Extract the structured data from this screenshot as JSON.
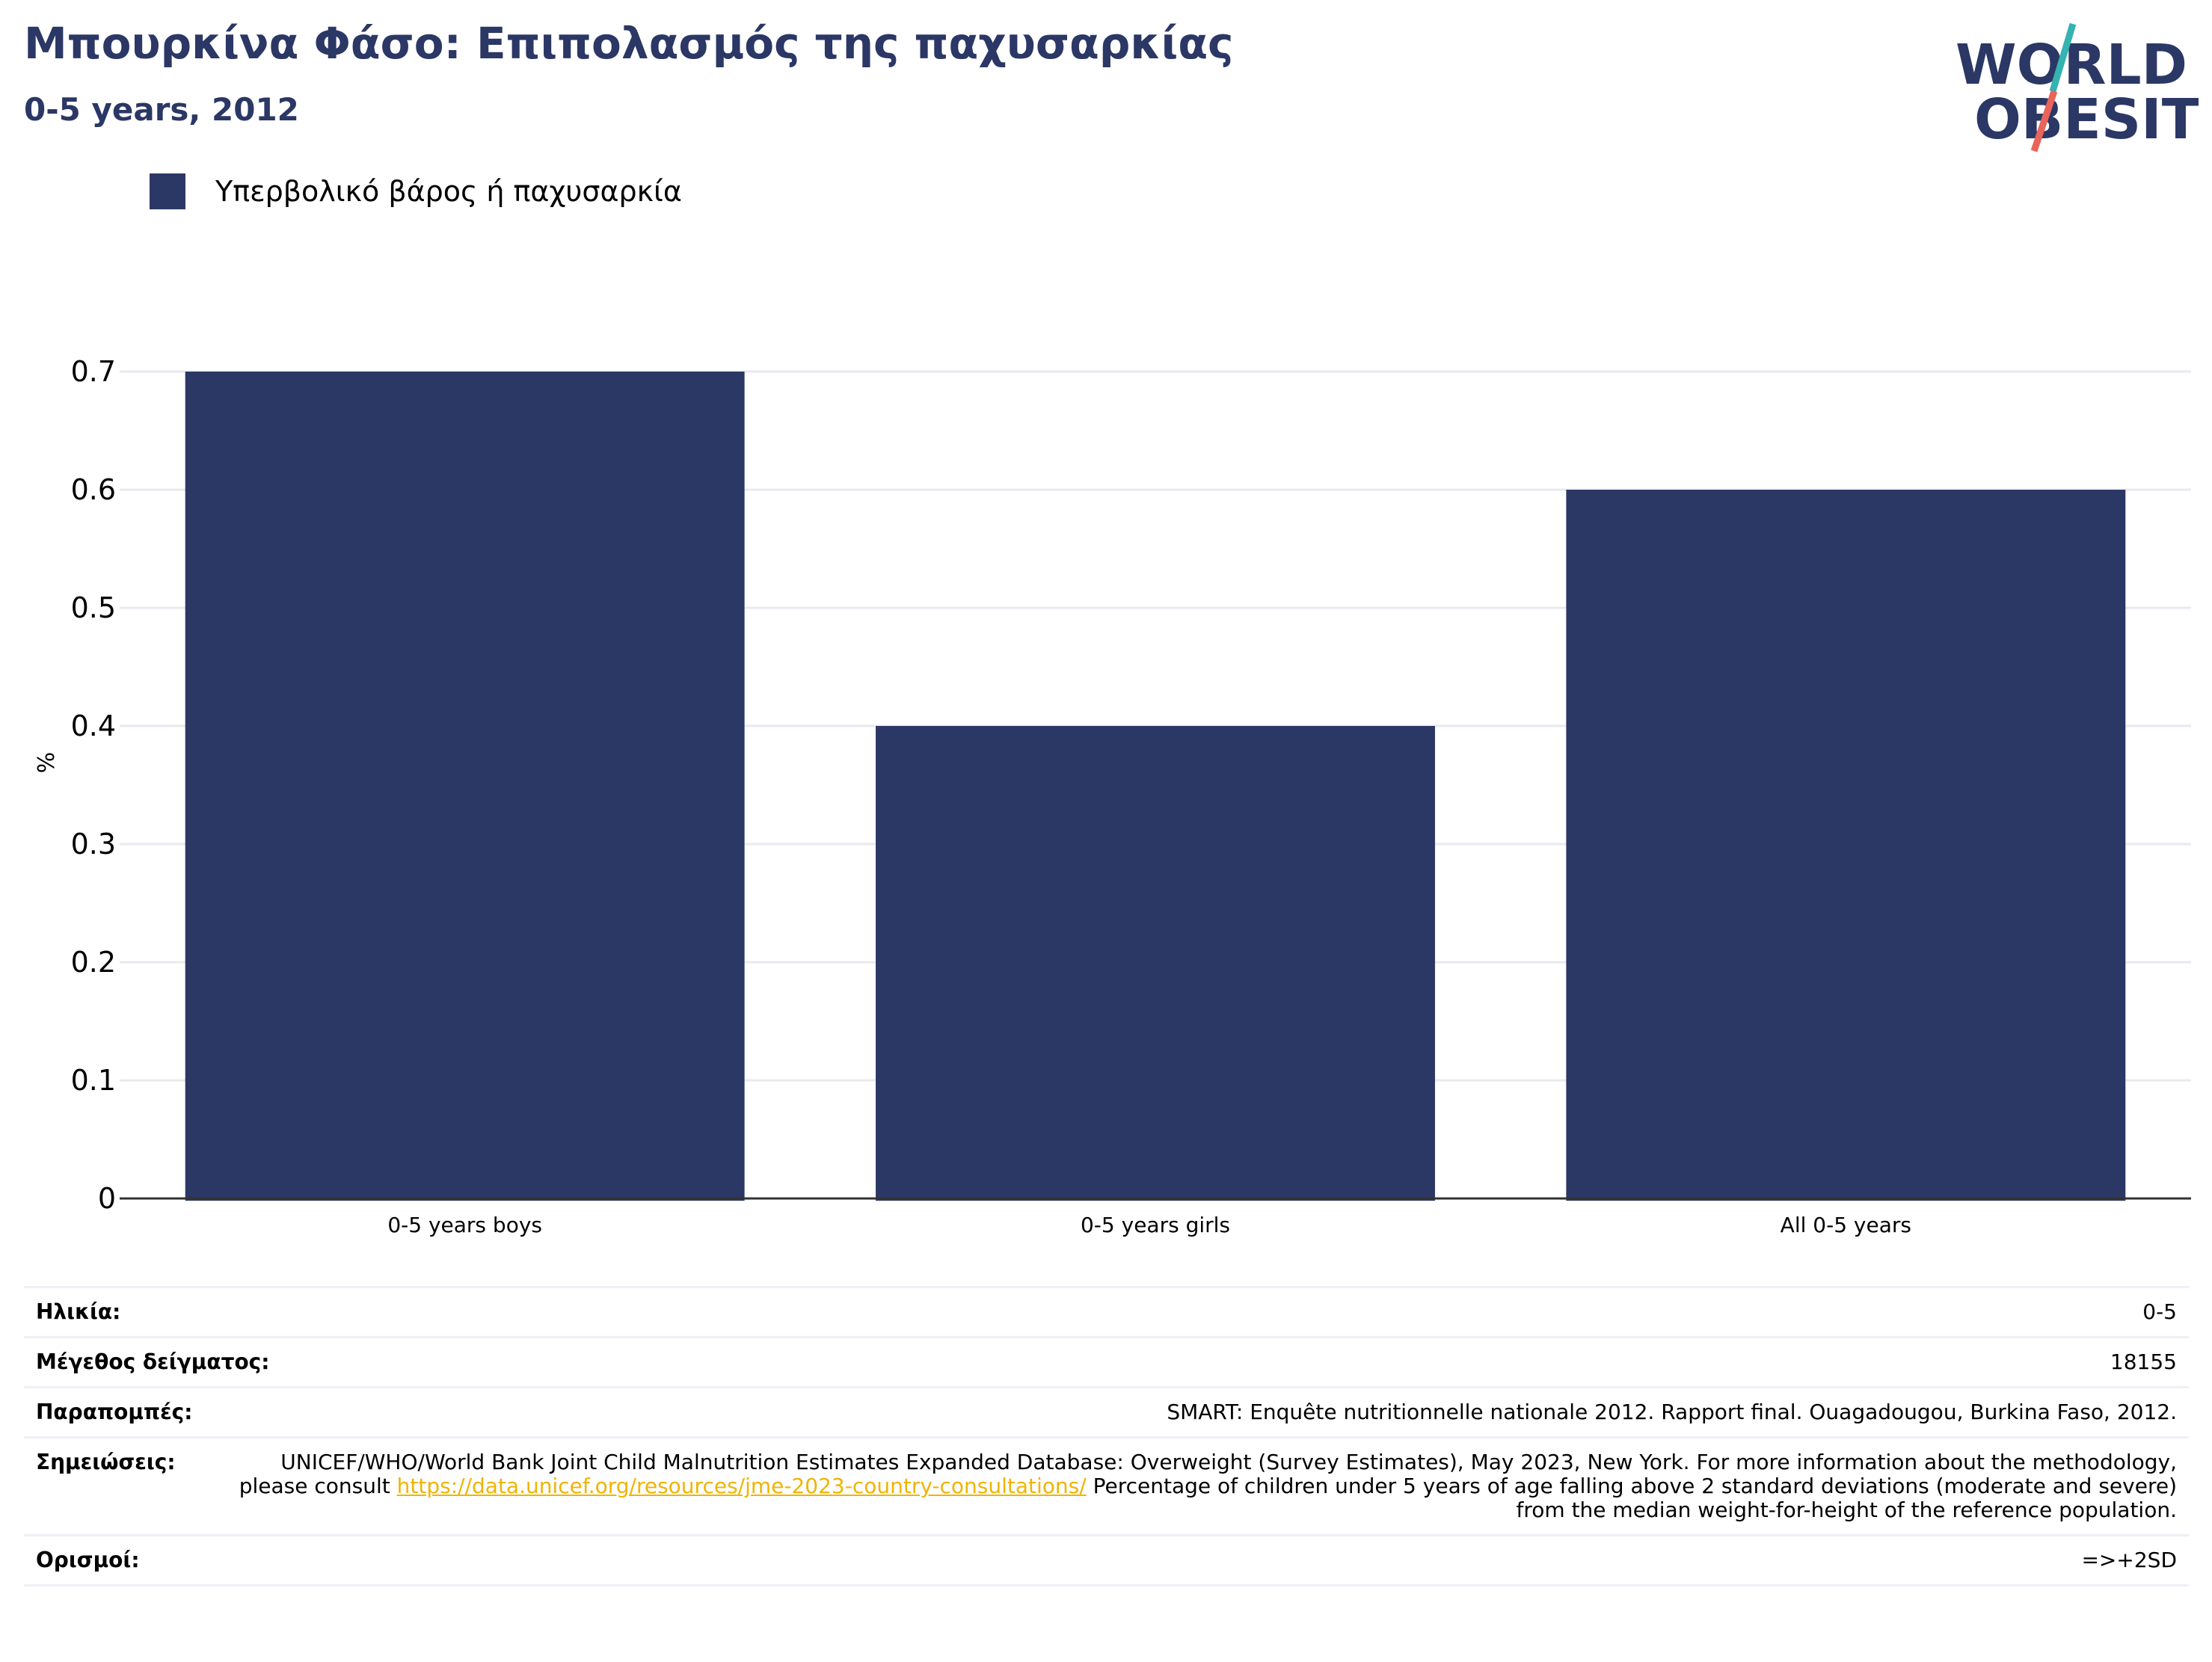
{
  "header": {
    "title": "Μπουρκίνα Φάσο: Επιπολασμός της παχυσαρκίας",
    "subtitle": "0-5 years, 2012"
  },
  "logo": {
    "line1": "WORLD",
    "line2": "OBESITY"
  },
  "legend": {
    "label": "Υπερβολικό βάρος ή παχυσαρκία",
    "color": "#2b3765"
  },
  "chart_data": {
    "type": "bar",
    "categories": [
      "0-5 years boys",
      "0-5 years girls",
      "All 0-5 years"
    ],
    "series": [
      {
        "name": "Υπερβολικό βάρος ή παχυσαρκία",
        "values": [
          0.7,
          0.4,
          0.6
        ],
        "color": "#2b3765"
      }
    ],
    "ylabel": "%",
    "ylim": [
      0,
      0.7
    ],
    "yticks": [
      "0",
      "0.1",
      "0.2",
      "0.3",
      "0.4",
      "0.5",
      "0.6",
      "0.7"
    ],
    "grid": true,
    "legend_position": "top-left"
  },
  "meta": {
    "age_label": "Ηλικία:",
    "age_value": "0-5",
    "sample_label": "Μέγεθος δείγματος:",
    "sample_value": "18155",
    "references_label": "Παραπομπές:",
    "references_value": "SMART: Enquête nutritionnelle nationale 2012. Rapport final. Ouagadougou, Burkina Faso, 2012.",
    "notes_label": "Σημειώσεις:",
    "notes_pre": "UNICEF/WHO/World Bank Joint Child Malnutrition Estimates Expanded Database: Overweight (Survey Estimates), May 2023, New York. For more information about the methodology, please consult ",
    "notes_link": "https://data.unicef.org/resources/jme-2023-country-consultations/",
    "notes_post": " Percentage of children under 5 years of age falling above 2 standard deviations (moderate and severe) from the median weight-for-height of the reference population.",
    "definitions_label": "Ορισμοί:",
    "definitions_value": "=>+2SD"
  }
}
